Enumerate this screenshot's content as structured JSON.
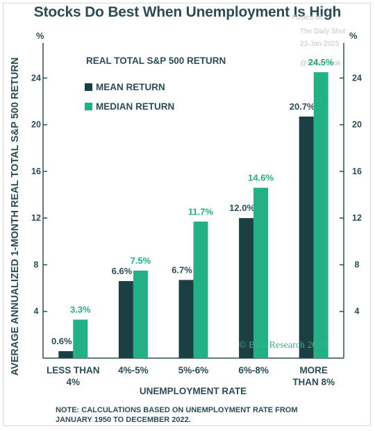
{
  "chart_data": {
    "type": "bar",
    "title": "Stocks Do Best When Unemployment Is High",
    "ylabel": "AVERAGE ANNUALIZED 1-MONTH REAL TOTAL S&P 500 RETURN",
    "xlabel": "UNEMPLOYMENT RATE",
    "unit_left": "%",
    "unit_right": "%",
    "ylim": [
      0,
      27
    ],
    "yticks": [
      4,
      8,
      12,
      16,
      20,
      24
    ],
    "legend_title": "REAL TOTAL S&P 500  RETURN",
    "categories": [
      [
        "LESS THAN",
        "4%"
      ],
      [
        "4%-5%"
      ],
      [
        "5%-6%"
      ],
      [
        "6%-8%"
      ],
      [
        "MORE",
        "THAN 8%"
      ]
    ],
    "series": [
      {
        "name": "MEAN RETURN",
        "color": "#1c3f44",
        "values": [
          0.6,
          6.6,
          6.7,
          12.0,
          20.7
        ],
        "labels": [
          "0.6%",
          "6.6%",
          "6.7%",
          "12.0%",
          "20.7%"
        ],
        "label_color": "#2b4c57"
      },
      {
        "name": "MEDIAN RETURN",
        "color": "#21b184",
        "values": [
          3.3,
          7.5,
          11.7,
          14.6,
          24.5
        ],
        "labels": [
          "3.3%",
          "7.5%",
          "11.7%",
          "14.6%",
          "24.5%"
        ],
        "label_color": "#21b184"
      }
    ],
    "grid": false,
    "legend_position": "top-left"
  },
  "credit": "© BCα Research 2023",
  "note": "NOTE: CALCULATIONS BASED ON UNEMPLOYMENT RATE FROM JANUARY 1950 TO DECEMBER 2022.",
  "watermark": {
    "line1": "Posted on",
    "line2": "The Daily Shot",
    "line3": "23-Jan-2023",
    "line4": "@SoberLook"
  }
}
